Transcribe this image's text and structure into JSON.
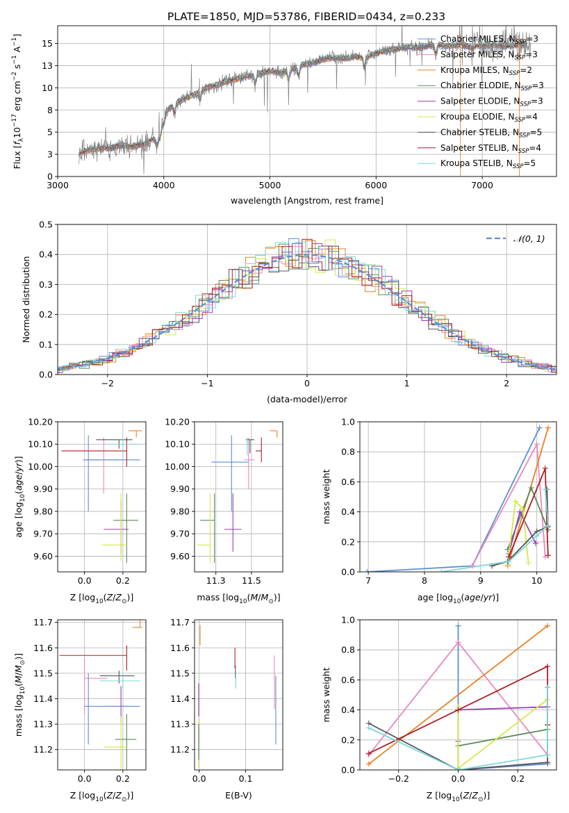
{
  "title": "PLATE=1850, MJD=53786, FIBERID=0434, z=0.233",
  "colors": {
    "chabrier_miles": "#5b8ed8",
    "salpeter_miles": "#e889bd",
    "kroupa_miles": "#ea7f24",
    "chabrier_elodie": "#5b8a5b",
    "salpeter_elodie": "#9b3db5",
    "kroupa_elodie": "#d3e84a",
    "chabrier_stelib": "#555555",
    "salpeter_stelib": "#b11c23",
    "kroupa_stelib": "#7fd6da",
    "gauss": "#5b8ed8",
    "data": "#808080"
  },
  "legend": [
    {
      "key": "chabrier_miles",
      "label": "Chabrier MILES, N$_{SSP}$=3",
      "text": "Chabrier MILES, N",
      "sub": "SSP",
      "tail": "=3"
    },
    {
      "key": "salpeter_miles",
      "text": "Salpeter MILES, N",
      "sub": "SSP",
      "tail": "=3"
    },
    {
      "key": "kroupa_miles",
      "text": "Kroupa MILES, N",
      "sub": "SSP",
      "tail": "=2"
    },
    {
      "key": "chabrier_elodie",
      "text": "Chabrier ELODIE, N",
      "sub": "SSP",
      "tail": "=3"
    },
    {
      "key": "salpeter_elodie",
      "text": "Salpeter ELODIE, N",
      "sub": "SSP",
      "tail": "=3"
    },
    {
      "key": "kroupa_elodie",
      "text": "Kroupa ELODIE, N",
      "sub": "SSP",
      "tail": "=4"
    },
    {
      "key": "chabrier_stelib",
      "text": "Chabrier STELIB, N",
      "sub": "SSP",
      "tail": "=5"
    },
    {
      "key": "salpeter_stelib",
      "text": "Salpeter STELIB, N",
      "sub": "SSP",
      "tail": "=4"
    },
    {
      "key": "kroupa_stelib",
      "text": "Kroupa STELIB, N",
      "sub": "SSP",
      "tail": "=5"
    }
  ],
  "chart_data": [
    {
      "id": "spectrum",
      "type": "line",
      "xlabel": "wavelength [Angstrom, rest frame]",
      "ylabel_parts": [
        "Flux [f",
        "λ",
        "10",
        "−17",
        " erg cm",
        "−2",
        " s",
        "−1",
        " A",
        "−1",
        "]"
      ],
      "xlim": [
        3000,
        7700
      ],
      "ylim": [
        0,
        17
      ],
      "xticks": [
        3000,
        4000,
        5000,
        6000,
        7000
      ],
      "yticks": [
        0.0,
        2.5,
        5.0,
        7.5,
        10.0,
        12.5,
        15.0
      ],
      "continuum": {
        "x": [
          3200,
          3300,
          3400,
          3500,
          3600,
          3700,
          3800,
          3900,
          3950,
          4000,
          4100,
          4200,
          4300,
          4400,
          4500,
          4600,
          4700,
          4800,
          4900,
          5000,
          5100,
          5200,
          5300,
          5400,
          5500,
          5600,
          5700,
          5800,
          5900,
          6000,
          6100,
          6200,
          6300,
          6400,
          6500,
          6600,
          6700,
          6800,
          6900,
          7000,
          7100,
          7200,
          7300,
          7400
        ],
        "y": [
          2.6,
          3.0,
          3.2,
          3.2,
          3.5,
          3.4,
          3.6,
          4.2,
          4.5,
          7.0,
          8.2,
          8.8,
          9.3,
          10.0,
          10.3,
          10.8,
          11.0,
          11.3,
          11.6,
          11.9,
          11.7,
          12.0,
          12.6,
          12.8,
          13.2,
          13.4,
          13.3,
          13.5,
          13.4,
          13.9,
          14.2,
          14.4,
          14.6,
          14.5,
          14.8,
          14.8,
          14.7,
          14.9,
          14.5,
          14.8,
          14.9,
          14.7,
          14.8,
          14.9
        ]
      }
    },
    {
      "id": "residuals",
      "type": "histogram",
      "xlabel": "(data-model)/error",
      "ylabel": "Normed distribution",
      "xlim": [
        -2.5,
        2.5
      ],
      "ylim": [
        0,
        0.5
      ],
      "xticks": [
        -2,
        -1,
        0,
        1,
        2
      ],
      "yticks": [
        0.0,
        0.1,
        0.2,
        0.3,
        0.4,
        0.5
      ],
      "bin_width": 0.1,
      "legend_label": "𝒩(0, 1)",
      "gaussian": {
        "mean": 0,
        "sigma": 1
      }
    },
    {
      "id": "age_vs_z",
      "type": "errorbar",
      "xlabel_parts": [
        "Z [log",
        "10",
        "(Z/Z",
        "⊙",
        ")]"
      ],
      "ylabel_parts": [
        "age  [log",
        "10",
        "(age/yr)]"
      ],
      "xlim": [
        -0.14,
        0.32
      ],
      "ylim": [
        9.53,
        10.2
      ],
      "xticks": [
        0.0,
        0.2
      ],
      "yticks": [
        9.6,
        9.7,
        9.8,
        9.9,
        10.0,
        10.1,
        10.2
      ],
      "points": [
        {
          "key": "kroupa_miles",
          "x": 0.27,
          "y": 10.16,
          "xerr": [
            0.04,
            0.03
          ],
          "yerr": [
            0.03,
            0.0
          ]
        },
        {
          "key": "salpeter_miles",
          "x": 0.1,
          "y": 10.03,
          "xerr": [
            0.11,
            0.1
          ],
          "yerr": [
            0.15,
            0.1
          ]
        },
        {
          "key": "chabrier_miles",
          "x": 0.02,
          "y": 10.03,
          "xerr": [
            0.02,
            0.27
          ],
          "yerr": [
            0.23,
            0.11
          ]
        },
        {
          "key": "chabrier_stelib",
          "x": 0.18,
          "y": 10.12,
          "xerr": [
            0.12,
            0.07
          ],
          "yerr": [
            0.04,
            0.0
          ]
        },
        {
          "key": "salpeter_stelib",
          "x": 0.22,
          "y": 10.07,
          "xerr": [
            0.34,
            0.0
          ],
          "yerr": [
            0.07,
            0.06
          ]
        },
        {
          "key": "kroupa_stelib",
          "x": 0.2,
          "y": 10.1,
          "xerr": [
            0.1,
            0.09
          ],
          "yerr": [
            0.06,
            0.03
          ]
        },
        {
          "key": "chabrier_elodie",
          "x": 0.22,
          "y": 9.76,
          "xerr": [
            0.07,
            0.06
          ],
          "yerr": [
            0.19,
            0.12
          ]
        },
        {
          "key": "salpeter_elodie",
          "x": 0.19,
          "y": 9.72,
          "xerr": [
            0.09,
            0.04
          ],
          "yerr": [
            0.11,
            0.13
          ]
        },
        {
          "key": "kroupa_elodie",
          "x": 0.19,
          "y": 9.65,
          "xerr": [
            0.1,
            0.03
          ],
          "yerr": [
            0.07,
            0.23
          ]
        }
      ]
    },
    {
      "id": "age_vs_mass",
      "type": "errorbar",
      "xlabel_parts": [
        "mass [log",
        "10",
        "(M/M",
        "⊙",
        ")]"
      ],
      "xlim": [
        11.1,
        11.72
      ],
      "ylim": [
        9.53,
        10.2
      ],
      "xticks": [
        11.25,
        11.5
      ],
      "yticks": [
        9.6,
        9.7,
        9.8,
        9.9,
        10.0,
        10.1,
        10.2
      ],
      "points": [
        {
          "key": "kroupa_miles",
          "x": 11.68,
          "y": 10.16,
          "xerr": [
            0.05,
            0.0
          ],
          "yerr": [
            0.03,
            0.0
          ]
        },
        {
          "key": "salpeter_miles",
          "x": 11.48,
          "y": 10.03,
          "xerr": [
            0.03,
            0.04
          ],
          "yerr": [
            0.13,
            0.1
          ]
        },
        {
          "key": "chabrier_miles",
          "x": 11.36,
          "y": 10.02,
          "xerr": [
            0.14,
            0.12
          ],
          "yerr": [
            0.22,
            0.12
          ]
        },
        {
          "key": "chabrier_stelib",
          "x": 11.49,
          "y": 10.12,
          "xerr": [
            0.03,
            0.03
          ],
          "yerr": [
            0.06,
            0.0
          ]
        },
        {
          "key": "salpeter_stelib",
          "x": 11.57,
          "y": 10.07,
          "xerr": [
            0.04,
            0.0
          ],
          "yerr": [
            0.05,
            0.06
          ]
        },
        {
          "key": "kroupa_stelib",
          "x": 11.47,
          "y": 10.11,
          "xerr": [
            0.0,
            0.03
          ],
          "yerr": [
            0.06,
            0.02
          ]
        },
        {
          "key": "chabrier_elodie",
          "x": 11.24,
          "y": 9.76,
          "xerr": [
            0.1,
            0.0
          ],
          "yerr": [
            0.19,
            0.12
          ]
        },
        {
          "key": "salpeter_elodie",
          "x": 11.37,
          "y": 9.72,
          "xerr": [
            0.06,
            0.06
          ],
          "yerr": [
            0.1,
            0.16
          ]
        },
        {
          "key": "kroupa_elodie",
          "x": 11.21,
          "y": 9.65,
          "xerr": [
            0.09,
            0.0
          ],
          "yerr": [
            0.08,
            0.23
          ]
        }
      ]
    },
    {
      "id": "weight_vs_age",
      "type": "line",
      "xlabel_parts": [
        "age  [log",
        "10",
        "(age/yr)]"
      ],
      "ylabel": "mass weight",
      "xlim": [
        6.85,
        10.35
      ],
      "ylim": [
        0,
        1
      ],
      "xticks": [
        7,
        8,
        9,
        10
      ],
      "yticks": [
        0.0,
        0.2,
        0.4,
        0.6,
        0.8,
        1.0
      ],
      "series": [
        {
          "key": "chabrier_miles",
          "x": [
            6.98,
            8.85,
            10.05
          ],
          "y": [
            0.0,
            0.04,
            0.96
          ]
        },
        {
          "key": "salpeter_miles",
          "x": [
            8.85,
            10.0,
            10.15
          ],
          "y": [
            0.04,
            0.85,
            0.1
          ]
        },
        {
          "key": "kroupa_miles",
          "x": [
            9.48,
            10.2
          ],
          "y": [
            0.04,
            0.96
          ]
        },
        {
          "key": "chabrier_elodie",
          "x": [
            9.48,
            9.9,
            10.2
          ],
          "y": [
            0.15,
            0.56,
            0.28
          ]
        },
        {
          "key": "salpeter_elodie",
          "x": [
            9.5,
            9.7,
            9.98
          ],
          "y": [
            0.12,
            0.4,
            0.19
          ]
        },
        {
          "key": "kroupa_elodie",
          "x": [
            9.48,
            9.62,
            9.75,
            9.85
          ],
          "y": [
            0.05,
            0.47,
            0.42,
            0.06
          ]
        },
        {
          "key": "chabrier_stelib",
          "x": [
            9.2,
            9.48,
            10.0,
            10.2,
            10.18
          ],
          "y": [
            0.04,
            0.07,
            0.27,
            0.3,
            0.55
          ]
        },
        {
          "key": "salpeter_stelib",
          "x": [
            9.5,
            10.15,
            10.18,
            10.2
          ],
          "y": [
            0.1,
            0.69,
            0.3,
            0.11
          ]
        },
        {
          "key": "kroupa_stelib",
          "x": [
            8.3,
            9.5,
            10.0,
            10.2,
            10.15
          ],
          "y": [
            0.0,
            0.07,
            0.24,
            0.31,
            0.55
          ]
        }
      ]
    },
    {
      "id": "mass_vs_z",
      "type": "errorbar",
      "xlabel_parts": [
        "Z [log",
        "10",
        "(Z/Z",
        "⊙",
        ")]"
      ],
      "ylabel_parts": [
        "mass [log",
        "10",
        "(M/M",
        "⊙",
        ")]"
      ],
      "xlim": [
        -0.14,
        0.32
      ],
      "ylim": [
        11.12,
        11.71
      ],
      "xticks": [
        0.0,
        0.2
      ],
      "yticks": [
        11.2,
        11.3,
        11.4,
        11.5,
        11.6,
        11.7
      ],
      "points": [
        {
          "key": "kroupa_miles",
          "x": 0.29,
          "y": 11.68,
          "xerr": [
            0.04,
            0.01
          ],
          "yerr": [
            0.0,
            0.06
          ]
        },
        {
          "key": "salpeter_stelib",
          "x": 0.22,
          "y": 11.57,
          "xerr": [
            0.35,
            0.0
          ],
          "yerr": [
            0.06,
            0.04
          ]
        },
        {
          "key": "chabrier_stelib",
          "x": 0.18,
          "y": 11.49,
          "xerr": [
            0.1,
            0.08
          ],
          "yerr": [
            0.03,
            0.02
          ]
        },
        {
          "key": "salpeter_miles",
          "x": 0.0,
          "y": 11.48,
          "xerr": [
            0.0,
            0.12
          ],
          "yerr": [
            0.14,
            0.08
          ]
        },
        {
          "key": "kroupa_stelib",
          "x": 0.2,
          "y": 11.47,
          "xerr": [
            0.12,
            0.09
          ],
          "yerr": [
            0.03,
            0.03
          ]
        },
        {
          "key": "salpeter_elodie",
          "x": 0.19,
          "y": 11.37,
          "xerr": [
            0.09,
            0.04
          ],
          "yerr": [
            0.07,
            0.08
          ]
        },
        {
          "key": "chabrier_miles",
          "x": 0.02,
          "y": 11.37,
          "xerr": [
            0.02,
            0.27
          ],
          "yerr": [
            0.15,
            0.13
          ]
        },
        {
          "key": "chabrier_elodie",
          "x": 0.22,
          "y": 11.24,
          "xerr": [
            0.06,
            0.05
          ],
          "yerr": [
            0.12,
            0.1
          ]
        },
        {
          "key": "kroupa_elodie",
          "x": 0.19,
          "y": 11.21,
          "xerr": [
            0.09,
            0.03
          ],
          "yerr": [
            0.1,
            0.12
          ]
        }
      ]
    },
    {
      "id": "mass_vs_ebv",
      "type": "errorbar",
      "xlabel": "E(B-V)",
      "xlim": [
        -0.01,
        0.18
      ],
      "ylim": [
        11.12,
        11.71
      ],
      "xticks": [
        0.0,
        0.1
      ],
      "yticks": [
        11.2,
        11.3,
        11.4,
        11.5,
        11.6,
        11.7
      ],
      "points": [
        {
          "key": "kroupa_miles",
          "x": 0.002,
          "y": 11.66,
          "xerr": [
            0,
            0
          ],
          "yerr": [
            0.05,
            0.03
          ]
        },
        {
          "key": "salpeter_stelib",
          "x": 0.077,
          "y": 11.56,
          "xerr": [
            0,
            0
          ],
          "yerr": [
            0.04,
            0.04
          ]
        },
        {
          "key": "chabrier_stelib",
          "x": 0.078,
          "y": 11.51,
          "xerr": [
            0,
            0
          ],
          "yerr": [
            0.03,
            0.02
          ]
        },
        {
          "key": "kroupa_stelib",
          "x": 0.079,
          "y": 11.47,
          "xerr": [
            0,
            0
          ],
          "yerr": [
            0.03,
            0.03
          ]
        },
        {
          "key": "salpeter_miles",
          "x": 0.162,
          "y": 11.48,
          "xerr": [
            0,
            0
          ],
          "yerr": [
            0.12,
            0.09
          ]
        },
        {
          "key": "chabrier_miles",
          "x": 0.165,
          "y": 11.37,
          "xerr": [
            0,
            0
          ],
          "yerr": [
            0.15,
            0.12
          ]
        },
        {
          "key": "salpeter_elodie",
          "x": -0.001,
          "y": 11.39,
          "xerr": [
            0,
            0
          ],
          "yerr": [
            0.06,
            0.07
          ]
        },
        {
          "key": "kroupa_elodie",
          "x": -0.001,
          "y": 11.23,
          "xerr": [
            0,
            0
          ],
          "yerr": [
            0.1,
            0.09
          ]
        },
        {
          "key": "chabrier_elodie",
          "x": -0.001,
          "y": 11.24,
          "xerr": [
            0,
            0
          ],
          "yerr": [
            0.08,
            0.06
          ]
        }
      ]
    },
    {
      "id": "weight_vs_z",
      "type": "line",
      "xlabel_parts": [
        "Z [log",
        "10",
        "(Z/Z",
        "⊙",
        ")]"
      ],
      "ylabel": "mass weight",
      "xlim": [
        -0.33,
        0.33
      ],
      "ylim": [
        0,
        1
      ],
      "xticks": [
        -0.2,
        0.0,
        0.2
      ],
      "yticks": [
        0.0,
        0.2,
        0.4,
        0.6,
        0.8,
        1.0
      ],
      "series": [
        {
          "key": "chabrier_miles",
          "x": [
            0.0,
            0.0,
            0.0,
            0.3
          ],
          "y": [
            0.01,
            0.96,
            0.0,
            0.04
          ]
        },
        {
          "key": "salpeter_miles",
          "x": [
            -0.3,
            0.0,
            0.3
          ],
          "y": [
            0.1,
            0.85,
            0.1
          ]
        },
        {
          "key": "kroupa_miles",
          "x": [
            -0.3,
            0.3
          ],
          "y": [
            0.04,
            0.96
          ]
        },
        {
          "key": "chabrier_elodie",
          "x": [
            0.0,
            0.0,
            0.3
          ],
          "y": [
            0.0,
            0.16,
            0.27
          ]
        },
        {
          "key": "salpeter_elodie",
          "x": [
            0.0,
            0.0,
            0.3
          ],
          "y": [
            0.19,
            0.4,
            0.42
          ]
        },
        {
          "key": "kroupa_elodie",
          "x": [
            0.0,
            0.0,
            0.3,
            0.3
          ],
          "y": [
            0.42,
            0.01,
            0.47,
            0.05
          ]
        },
        {
          "key": "chabrier_stelib",
          "x": [
            -0.3,
            0.0,
            0.3,
            0.3,
            0.3
          ],
          "y": [
            0.31,
            0.0,
            0.05,
            0.55,
            0.3
          ]
        },
        {
          "key": "salpeter_stelib",
          "x": [
            -0.3,
            0.0,
            0.3,
            0.3
          ],
          "y": [
            0.11,
            0.4,
            0.69,
            0.3
          ]
        },
        {
          "key": "kroupa_stelib",
          "x": [
            -0.3,
            0.0,
            0.3,
            0.3
          ],
          "y": [
            0.28,
            0.0,
            0.1,
            0.55
          ]
        }
      ]
    }
  ]
}
